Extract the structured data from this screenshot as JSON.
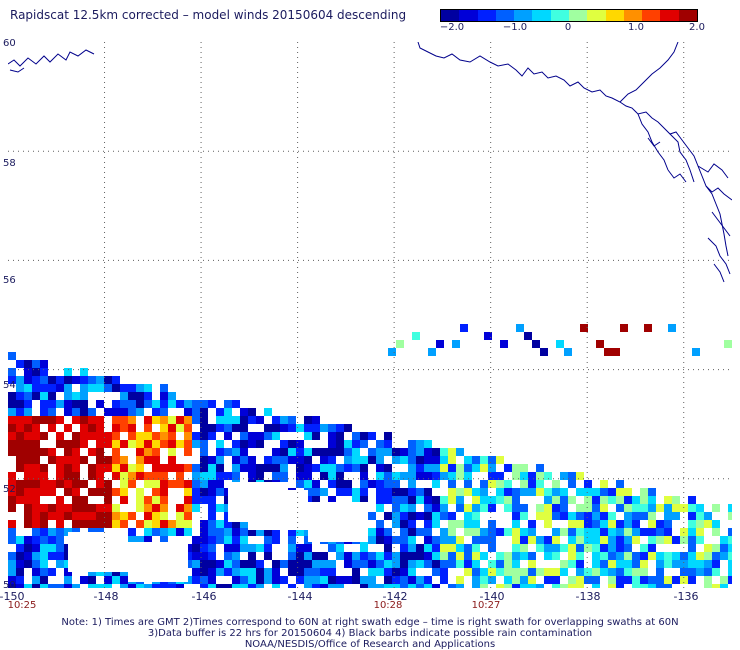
{
  "title": "Rapidscat 12.5km corrected – model winds 20150604 descending",
  "colorbar": {
    "tick_labels": [
      "−2.0",
      "−1.0",
      "0",
      "1.0",
      "2.0"
    ],
    "range": [
      -2.0,
      2.0
    ],
    "colors": [
      "#0000a0",
      "#0000d8",
      "#0020ff",
      "#0060ff",
      "#00a0ff",
      "#00d8ff",
      "#40ffe0",
      "#a0ffa0",
      "#e0ff40",
      "#ffd800",
      "#ff9000",
      "#ff4000",
      "#e00000",
      "#a00000"
    ]
  },
  "map": {
    "lon_labels": [
      "-150",
      "-148",
      "-146",
      "-144",
      "-142",
      "-140",
      "-138",
      "-136"
    ],
    "lat_labels": [
      "60",
      "58",
      "56",
      "54",
      "52",
      "50"
    ],
    "time_labels": [
      "10:25",
      "10:28",
      "10:27"
    ],
    "coastline_color": "#00008b",
    "grid_color": "#606060"
  },
  "footer": {
    "line1": "Note: 1) Times are GMT 2)Times correspond to 60N at right swath edge – time is right swath for overlapping swaths at 60N",
    "line2": "3)Data buffer is 22 hrs for 20150604 4) Black barbs indicate possible rain contamination",
    "line3": "NOAA/NESDIS/Office of Research and Applications"
  }
}
